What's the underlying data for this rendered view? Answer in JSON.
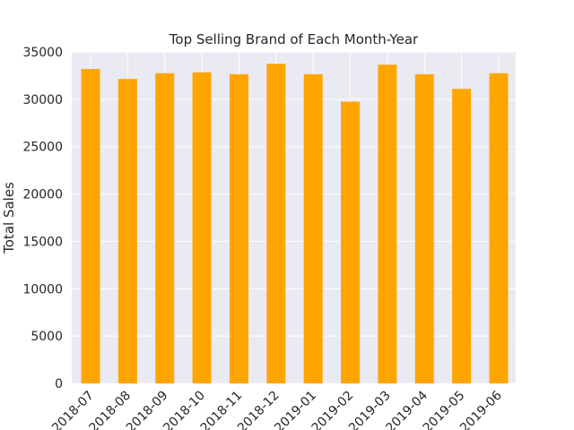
{
  "chart_data": {
    "type": "bar",
    "title": "Top Selling Brand of Each Month-Year",
    "xlabel": "",
    "ylabel": "Total Sales",
    "categories": [
      "2018-07",
      "2018-08",
      "2018-09",
      "2018-10",
      "2018-11",
      "2018-12",
      "2019-01",
      "2019-02",
      "2019-03",
      "2019-04",
      "2019-05",
      "2019-06"
    ],
    "values": [
      33200,
      32150,
      32750,
      32850,
      32650,
      33750,
      32650,
      29750,
      33650,
      32650,
      31100,
      32750
    ],
    "ylim": [
      0,
      35000
    ],
    "yticks": [
      0,
      5000,
      10000,
      15000,
      20000,
      25000,
      30000,
      35000
    ],
    "bar_color": "#ffa500",
    "plot_background": "#eaeaf2",
    "grid_color": "#ffffff",
    "grid": true
  }
}
